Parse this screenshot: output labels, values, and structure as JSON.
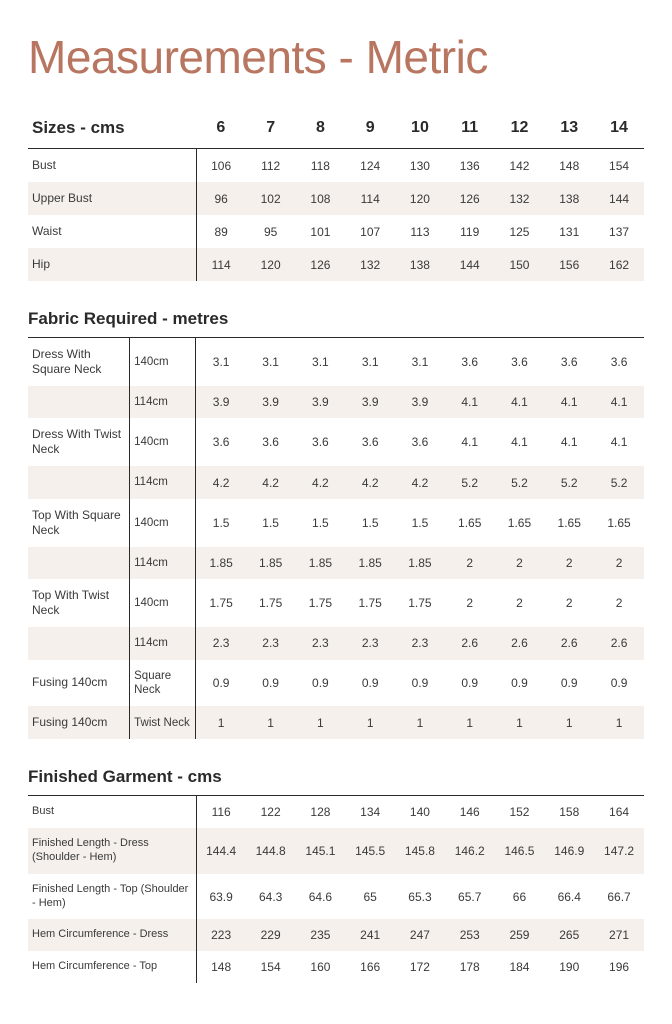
{
  "title": "Measurements - Metric",
  "colors": {
    "title": "#b87560",
    "text": "#2a2a2a",
    "row_alt_bg": "#f5f0ec",
    "background": "#ffffff",
    "border": "#2a2a2a"
  },
  "sizes_table": {
    "header_label": "Sizes - cms",
    "columns": [
      "6",
      "7",
      "8",
      "9",
      "10",
      "11",
      "12",
      "13",
      "14"
    ],
    "rows": [
      {
        "label": "Bust",
        "values": [
          "106",
          "112",
          "118",
          "124",
          "130",
          "136",
          "142",
          "148",
          "154"
        ]
      },
      {
        "label": "Upper Bust",
        "values": [
          "96",
          "102",
          "108",
          "114",
          "120",
          "126",
          "132",
          "138",
          "144"
        ]
      },
      {
        "label": "Waist",
        "values": [
          "89",
          "95",
          "101",
          "107",
          "113",
          "119",
          "125",
          "131",
          "137"
        ]
      },
      {
        "label": "Hip",
        "values": [
          "114",
          "120",
          "126",
          "132",
          "138",
          "144",
          "150",
          "156",
          "162"
        ]
      }
    ]
  },
  "fabric_table": {
    "title": "Fabric Required - metres",
    "rows": [
      {
        "label": "Dress With Square Neck",
        "label2": "140cm",
        "values": [
          "3.1",
          "3.1",
          "3.1",
          "3.1",
          "3.1",
          "3.6",
          "3.6",
          "3.6",
          "3.6"
        ]
      },
      {
        "label": "",
        "label2": "114cm",
        "values": [
          "3.9",
          "3.9",
          "3.9",
          "3.9",
          "3.9",
          "4.1",
          "4.1",
          "4.1",
          "4.1"
        ]
      },
      {
        "label": "Dress With Twist Neck",
        "label2": "140cm",
        "values": [
          "3.6",
          "3.6",
          "3.6",
          "3.6",
          "3.6",
          "4.1",
          "4.1",
          "4.1",
          "4.1"
        ]
      },
      {
        "label": "",
        "label2": "114cm",
        "values": [
          "4.2",
          "4.2",
          "4.2",
          "4.2",
          "4.2",
          "5.2",
          "5.2",
          "5.2",
          "5.2"
        ]
      },
      {
        "label": "Top With Square Neck",
        "label2": "140cm",
        "values": [
          "1.5",
          "1.5",
          "1.5",
          "1.5",
          "1.5",
          "1.65",
          "1.65",
          "1.65",
          "1.65"
        ]
      },
      {
        "label": "",
        "label2": "114cm",
        "values": [
          "1.85",
          "1.85",
          "1.85",
          "1.85",
          "1.85",
          "2",
          "2",
          "2",
          "2"
        ]
      },
      {
        "label": "Top With Twist Neck",
        "label2": "140cm",
        "values": [
          "1.75",
          "1.75",
          "1.75",
          "1.75",
          "1.75",
          "2",
          "2",
          "2",
          "2"
        ]
      },
      {
        "label": "",
        "label2": "114cm",
        "values": [
          "2.3",
          "2.3",
          "2.3",
          "2.3",
          "2.3",
          "2.6",
          "2.6",
          "2.6",
          "2.6"
        ]
      },
      {
        "label": "Fusing 140cm",
        "label2": "Square Neck",
        "values": [
          "0.9",
          "0.9",
          "0.9",
          "0.9",
          "0.9",
          "0.9",
          "0.9",
          "0.9",
          "0.9"
        ]
      },
      {
        "label": "Fusing 140cm",
        "label2": "Twist Neck",
        "values": [
          "1",
          "1",
          "1",
          "1",
          "1",
          "1",
          "1",
          "1",
          "1"
        ]
      }
    ]
  },
  "garment_table": {
    "title": "Finished Garment - cms",
    "rows": [
      {
        "label": "Bust",
        "values": [
          "116",
          "122",
          "128",
          "134",
          "140",
          "146",
          "152",
          "158",
          "164"
        ]
      },
      {
        "label": "Finished Length - Dress (Shoulder - Hem)",
        "values": [
          "144.4",
          "144.8",
          "145.1",
          "145.5",
          "145.8",
          "146.2",
          "146.5",
          "146.9",
          "147.2"
        ]
      },
      {
        "label": "Finished Length - Top (Shoulder - Hem)",
        "values": [
          "63.9",
          "64.3",
          "64.6",
          "65",
          "65.3",
          "65.7",
          "66",
          "66.4",
          "66.7"
        ]
      },
      {
        "label": "Hem Circumference - Dress",
        "values": [
          "223",
          "229",
          "235",
          "241",
          "247",
          "253",
          "259",
          "265",
          "271"
        ]
      },
      {
        "label": "Hem Circumference - Top",
        "values": [
          "148",
          "154",
          "160",
          "166",
          "172",
          "178",
          "184",
          "190",
          "196"
        ]
      }
    ]
  }
}
